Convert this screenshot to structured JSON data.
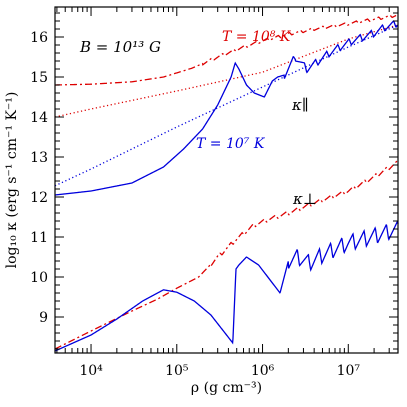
{
  "chart_data": {
    "type": "line",
    "xlabel": "ρ (g cm⁻³)",
    "ylabel": "log₁₀ κ (erg s⁻¹ cm⁻¹ K⁻¹)",
    "x_scale": "log",
    "xlim": [
      3800.0,
      38000000.0
    ],
    "ylim": [
      8.1,
      16.75
    ],
    "x_ticks": [
      {
        "value": 10000.0,
        "label": "10⁴"
      },
      {
        "value": 100000.0,
        "label": "10⁵"
      },
      {
        "value": 1000000.0,
        "label": "10⁶"
      },
      {
        "value": 10000000.0,
        "label": "10⁷"
      }
    ],
    "y_ticks": [
      9,
      10,
      11,
      12,
      13,
      14,
      15,
      16
    ],
    "annotations": {
      "field": "B = 10¹³ G",
      "t_high": "T = 10⁸ K",
      "t_low": "T = 10⁷ K",
      "kappa_par": "κ∥",
      "kappa_perp": "κ⊥"
    },
    "colors": {
      "red": "#dd0000",
      "blue": "#0000dd",
      "axis": "#000000"
    },
    "series": [
      {
        "group": "kappa_par",
        "temperature": "1e8 K",
        "style": "dash-dot",
        "color": "#dd0000",
        "x": [
          3800.0,
          10000.0,
          30000.0,
          70000.0,
          150000.0,
          300000.0,
          600000.0,
          1000000.0,
          2000000.0,
          4000000.0,
          10000000.0,
          38000000.0
        ],
        "y": [
          14.8,
          14.82,
          14.88,
          15.0,
          15.22,
          15.5,
          15.75,
          15.9,
          16.07,
          16.2,
          16.33,
          16.55
        ],
        "osc": {
          "from": 200000.0,
          "period_decades": 0.13,
          "amp": 0.07
        }
      },
      {
        "group": "kappa_par",
        "temperature": "1e8 K (non-quantizing)",
        "style": "dotted",
        "color": "#dd0000",
        "x": [
          3800.0,
          10000.0,
          100000.0,
          1000000.0,
          10000000.0,
          38000000.0
        ],
        "y": [
          14.0,
          14.2,
          14.65,
          15.12,
          15.95,
          16.3
        ]
      },
      {
        "group": "kappa_par",
        "temperature": "1e7 K (non-quantizing)",
        "style": "dotted",
        "color": "#0000dd",
        "x": [
          3800.0,
          10000.0,
          100000.0,
          1000000.0,
          10000000.0,
          38000000.0
        ],
        "y": [
          12.28,
          12.7,
          13.75,
          14.75,
          15.75,
          16.3
        ]
      },
      {
        "group": "kappa_par",
        "temperature": "1e7 K",
        "style": "solid",
        "color": "#0000dd",
        "x": [
          3800.0,
          10000.0,
          30000.0,
          70000.0,
          120000.0,
          200000.0,
          300000.0,
          430000.0,
          480000.0,
          530000.0,
          650000.0,
          800000.0,
          1050000.0,
          1300000.0,
          1500000.0,
          1800000.0,
          2400000.0,
          3300000.0,
          4500000.0,
          6000000.0,
          8000000.0,
          11000000.0,
          15000000.0,
          20000000.0,
          27000000.0,
          38000000.0
        ],
        "y": [
          12.05,
          12.15,
          12.35,
          12.75,
          13.2,
          13.7,
          14.3,
          15.0,
          15.35,
          15.2,
          14.8,
          14.6,
          14.5,
          14.9,
          15.0,
          15.05,
          15.5,
          15.2,
          15.4,
          15.6,
          15.75,
          15.9,
          16.0,
          16.1,
          16.25,
          16.35
        ],
        "osc": {
          "from": 1800000.0,
          "period_decades": 0.13,
          "amp": 0.18
        }
      },
      {
        "group": "kappa_perp",
        "temperature": "1e8 K",
        "style": "dash-dot",
        "color": "#dd0000",
        "x": [
          3800.0,
          10000.0,
          30000.0,
          60000.0,
          100000.0,
          180000.0,
          300000.0,
          500000.0,
          800000.0,
          1200000.0,
          2000000.0,
          4000000.0,
          10000000.0,
          20000000.0,
          38000000.0
        ],
        "y": [
          8.2,
          8.65,
          9.15,
          9.45,
          9.72,
          10.0,
          10.5,
          10.95,
          11.3,
          11.45,
          11.6,
          11.85,
          12.15,
          12.5,
          12.88
        ],
        "osc": {
          "from": 250000.0,
          "period_decades": 0.13,
          "amp": 0.1
        }
      },
      {
        "group": "kappa_perp",
        "temperature": "1e7 K",
        "style": "solid",
        "color": "#0000dd",
        "x": [
          3800.0,
          10000.0,
          20000.0,
          40000.0,
          70000.0,
          100000.0,
          160000.0,
          250000.0,
          350000.0,
          450000.0,
          490000.0,
          530000.0,
          650000.0,
          900000.0,
          1200000.0,
          1600000.0,
          2000000.0,
          2600000.0,
          3500000.0,
          5000000.0,
          7000000.0,
          10000000.0,
          15000000.0,
          22000000.0,
          38000000.0
        ],
        "y": [
          8.15,
          8.55,
          8.95,
          9.4,
          9.68,
          9.62,
          9.4,
          9.05,
          8.65,
          8.35,
          10.2,
          10.3,
          10.5,
          10.3,
          9.95,
          9.6,
          10.4,
          10.5,
          10.35,
          10.55,
          10.7,
          10.85,
          10.95,
          11.05,
          11.2
        ],
        "osc": {
          "from": 2000000.0,
          "period_decades": 0.13,
          "amp": 0.4
        }
      }
    ]
  }
}
